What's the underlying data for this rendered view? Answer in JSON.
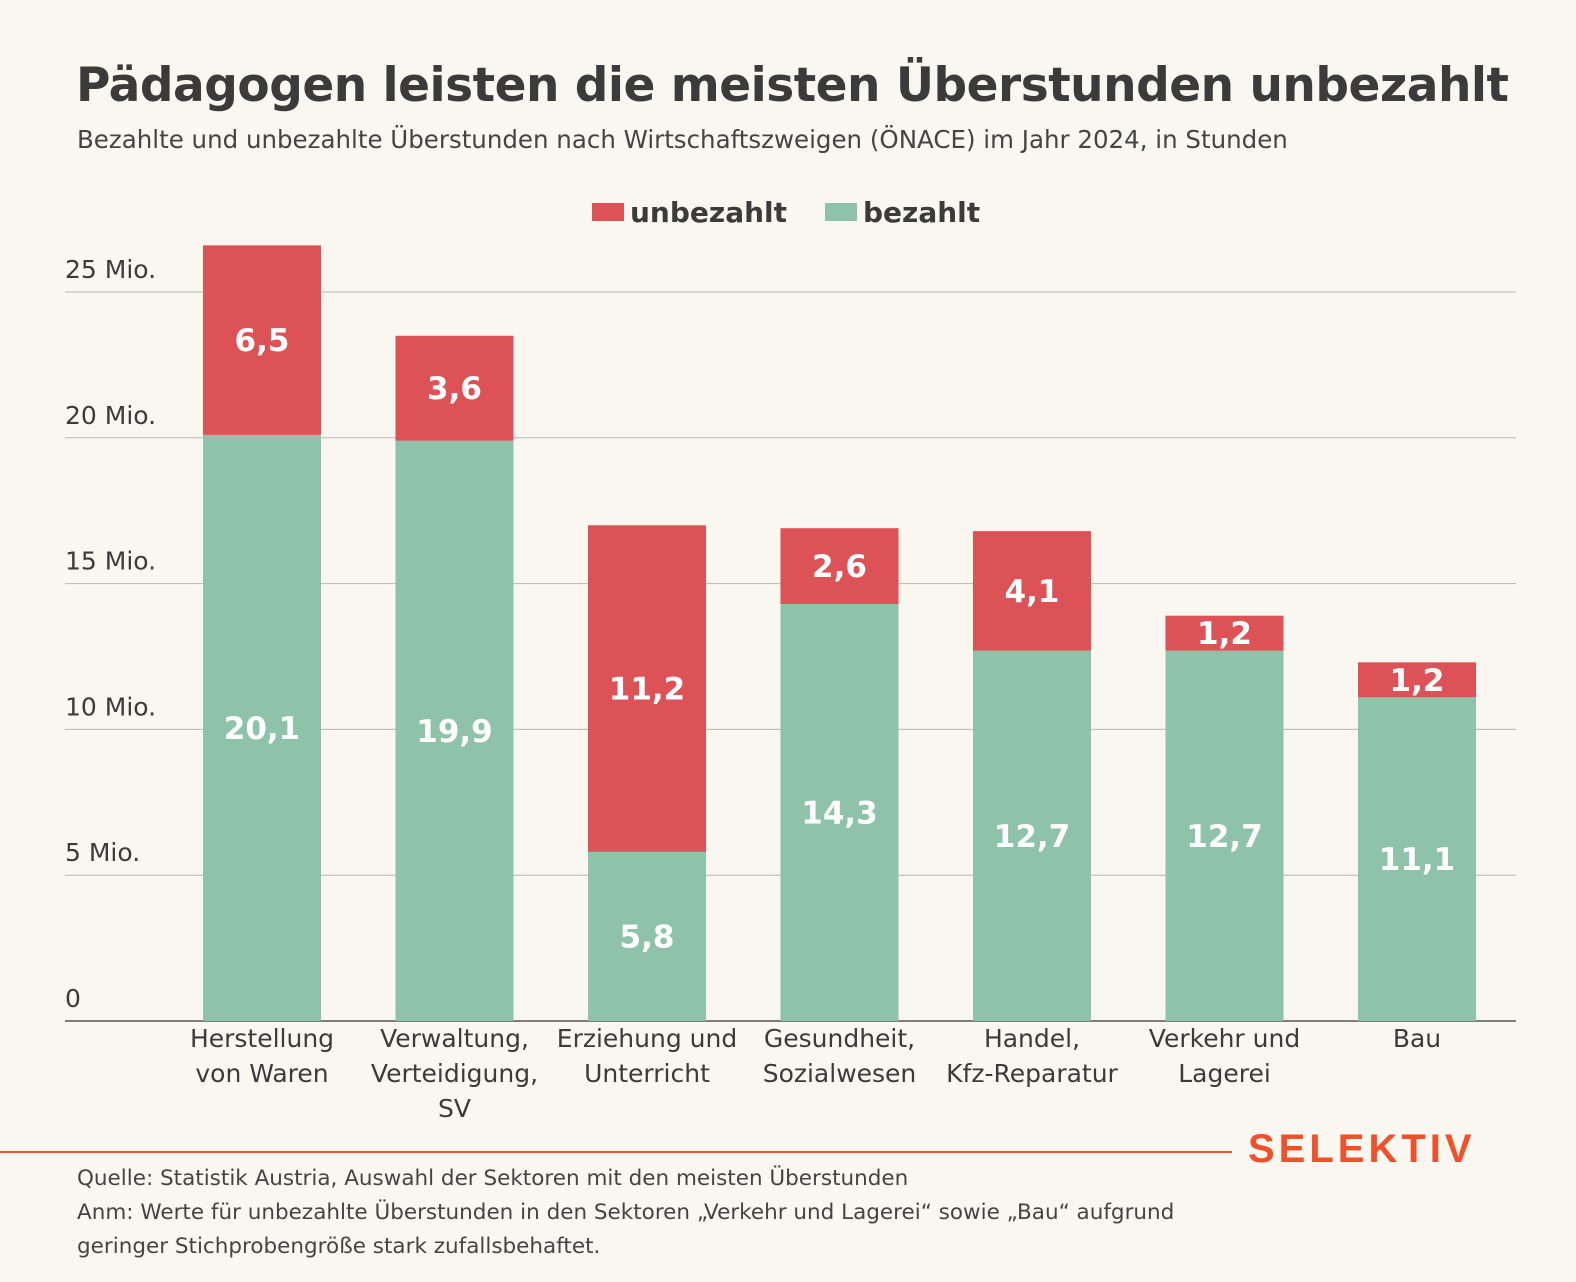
{
  "title": "Pädagogen leisten die meisten Überstunden unbezahlt",
  "subtitle": "Bezahlte und unbezahlte Überstunden nach Wirtschaftszweigen (ÖNACE) im Jahr 2024, in Stunden",
  "brand": "SELEKTIV",
  "source": {
    "line1": "Quelle: Statistik Austria, Auswahl der Sektoren mit den meisten Überstunden",
    "line2": "Anm: Werte für unbezahlte Überstunden in den Sektoren „Verkehr und Lagerei“ sowie „Bau“ aufgrund",
    "line3": "geringer Stichprobengröße stark zufallsbehaftet."
  },
  "colors": {
    "unbezahlt": "#dd5257",
    "bezahlt": "#8fc3a9",
    "accent": "#f0502a",
    "background": "#f9f7ef"
  },
  "chart_data": {
    "type": "bar",
    "stacked": true,
    "categories": [
      [
        "Herstellung",
        "von Waren"
      ],
      [
        "Verwaltung,",
        "Verteidigung,",
        "SV"
      ],
      [
        "Erziehung und",
        "Unterricht"
      ],
      [
        "Gesundheit,",
        "Sozialwesen"
      ],
      [
        "Handel,",
        "Kfz-Reparatur"
      ],
      [
        "Verkehr und",
        "Lagerei"
      ],
      [
        "Bau"
      ]
    ],
    "series": [
      {
        "name": "bezahlt",
        "values": [
          20.1,
          19.9,
          5.8,
          14.3,
          12.7,
          12.7,
          11.1
        ],
        "labels": [
          "20,1",
          "19,9",
          "5,8",
          "14,3",
          "12,7",
          "12,7",
          "11,1"
        ]
      },
      {
        "name": "unbezahlt",
        "values": [
          6.5,
          3.6,
          11.2,
          2.6,
          4.1,
          1.2,
          1.2
        ],
        "labels": [
          "6,5",
          "3,6",
          "11,2",
          "2,6",
          "4,1",
          "1,2",
          "1,2"
        ]
      }
    ],
    "legend": {
      "position": "top-center",
      "order": [
        "unbezahlt",
        "bezahlt"
      ]
    },
    "yticks": [
      0,
      5,
      10,
      15,
      20,
      25
    ],
    "ytick_labels": [
      "0",
      "5 Mio.",
      "10 Mio.",
      "15 Mio.",
      "20 Mio.",
      "25 Mio."
    ],
    "ylim": [
      0,
      27
    ],
    "grid": true,
    "xlabel": "",
    "ylabel": ""
  }
}
